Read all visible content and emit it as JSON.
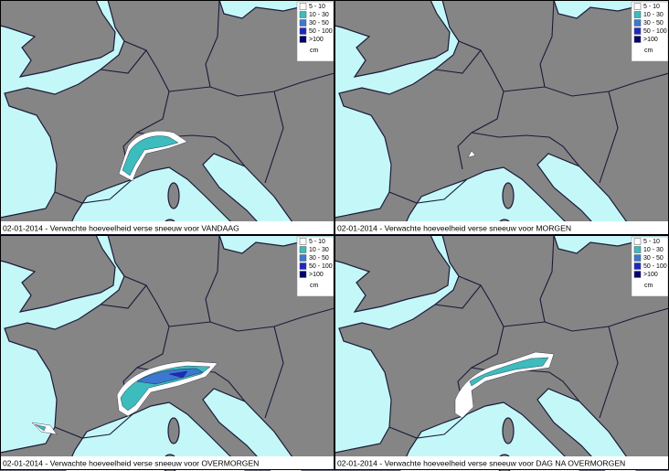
{
  "legend": {
    "classes": [
      {
        "label": "5 - 10",
        "color": "#ffffff"
      },
      {
        "label": "10 - 30",
        "color": "#3cbcbc"
      },
      {
        "label": "30 - 50",
        "color": "#3c78d0"
      },
      {
        "label": "50 - 100",
        "color": "#1e28c0"
      },
      {
        "label": ">100",
        "color": "#000070"
      }
    ],
    "unit": "cm"
  },
  "panels": [
    {
      "caption": "02-01-2014 - Verwachte hoeveelheid verse sneeuw voor VANDAAG"
    },
    {
      "caption": "02-01-2014 - Verwachte hoeveelheid verse sneeuw voor MORGEN"
    },
    {
      "caption": "02-01-2014 - Verwachte hoeveelheid verse sneeuw voor OVERMORGEN"
    },
    {
      "caption": "02-01-2014 - Verwachte hoeveelheid verse sneeuw voor DAG NA OVERMORGEN"
    }
  ]
}
